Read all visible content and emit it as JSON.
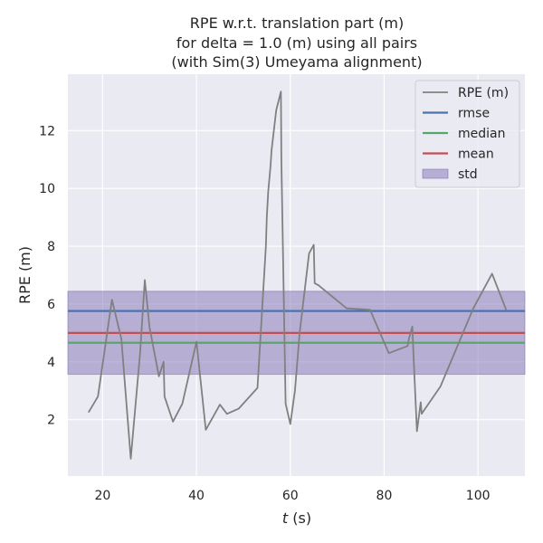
{
  "chart_data": {
    "type": "line",
    "title_lines": [
      "RPE w.r.t. translation part (m)",
      "for delta = 1.0 (m) using all pairs",
      "(with Sim(3) Umeyama alignment)"
    ],
    "xlabel_var": "t",
    "xlabel_unit": " (s)",
    "ylabel": "RPE (m)",
    "xlim": [
      12.6,
      110
    ],
    "ylim": [
      0.05,
      13.95
    ],
    "x_ticks": [
      20,
      40,
      60,
      80,
      100
    ],
    "y_ticks": [
      2,
      4,
      6,
      8,
      10,
      12
    ],
    "grid": true,
    "legend_position": "top-right",
    "series": [
      {
        "name": "RPE (m)",
        "color": "#808080",
        "x": [
          17,
          19,
          22,
          24,
          26,
          28,
          29,
          30,
          32,
          33,
          33.2,
          35,
          37,
          40,
          42,
          45,
          46.5,
          49,
          53,
          54.8,
          55,
          55.3,
          55.8,
          56,
          57,
          58,
          58.1,
          59,
          60,
          61,
          62,
          64,
          65,
          65.2,
          66,
          72,
          77,
          81,
          85,
          85.3,
          86,
          86.3,
          87,
          87.8,
          88,
          92,
          99,
          103,
          106
        ],
        "y": [
          2.25,
          2.8,
          6.15,
          4.8,
          0.65,
          4.3,
          6.83,
          5.2,
          3.5,
          4.0,
          2.8,
          1.93,
          2.55,
          4.7,
          1.65,
          2.52,
          2.2,
          2.38,
          3.1,
          8.0,
          9.0,
          9.9,
          10.8,
          11.3,
          12.7,
          13.35,
          11.0,
          2.55,
          1.85,
          3.0,
          5.0,
          7.75,
          8.05,
          6.72,
          6.65,
          5.85,
          5.8,
          4.3,
          4.55,
          4.8,
          5.22,
          4.1,
          1.6,
          2.6,
          2.2,
          3.15,
          5.85,
          7.05,
          5.8
        ]
      }
    ],
    "stats": [
      {
        "name": "rmse",
        "value": 5.76,
        "color": "#4c72b0"
      },
      {
        "name": "median",
        "value": 4.66,
        "color": "#55a868"
      },
      {
        "name": "mean",
        "value": 5.0,
        "color": "#c44e52"
      }
    ],
    "std_band": {
      "name": "std",
      "lower": 3.57,
      "upper": 6.44,
      "color": "#8172b3"
    }
  }
}
